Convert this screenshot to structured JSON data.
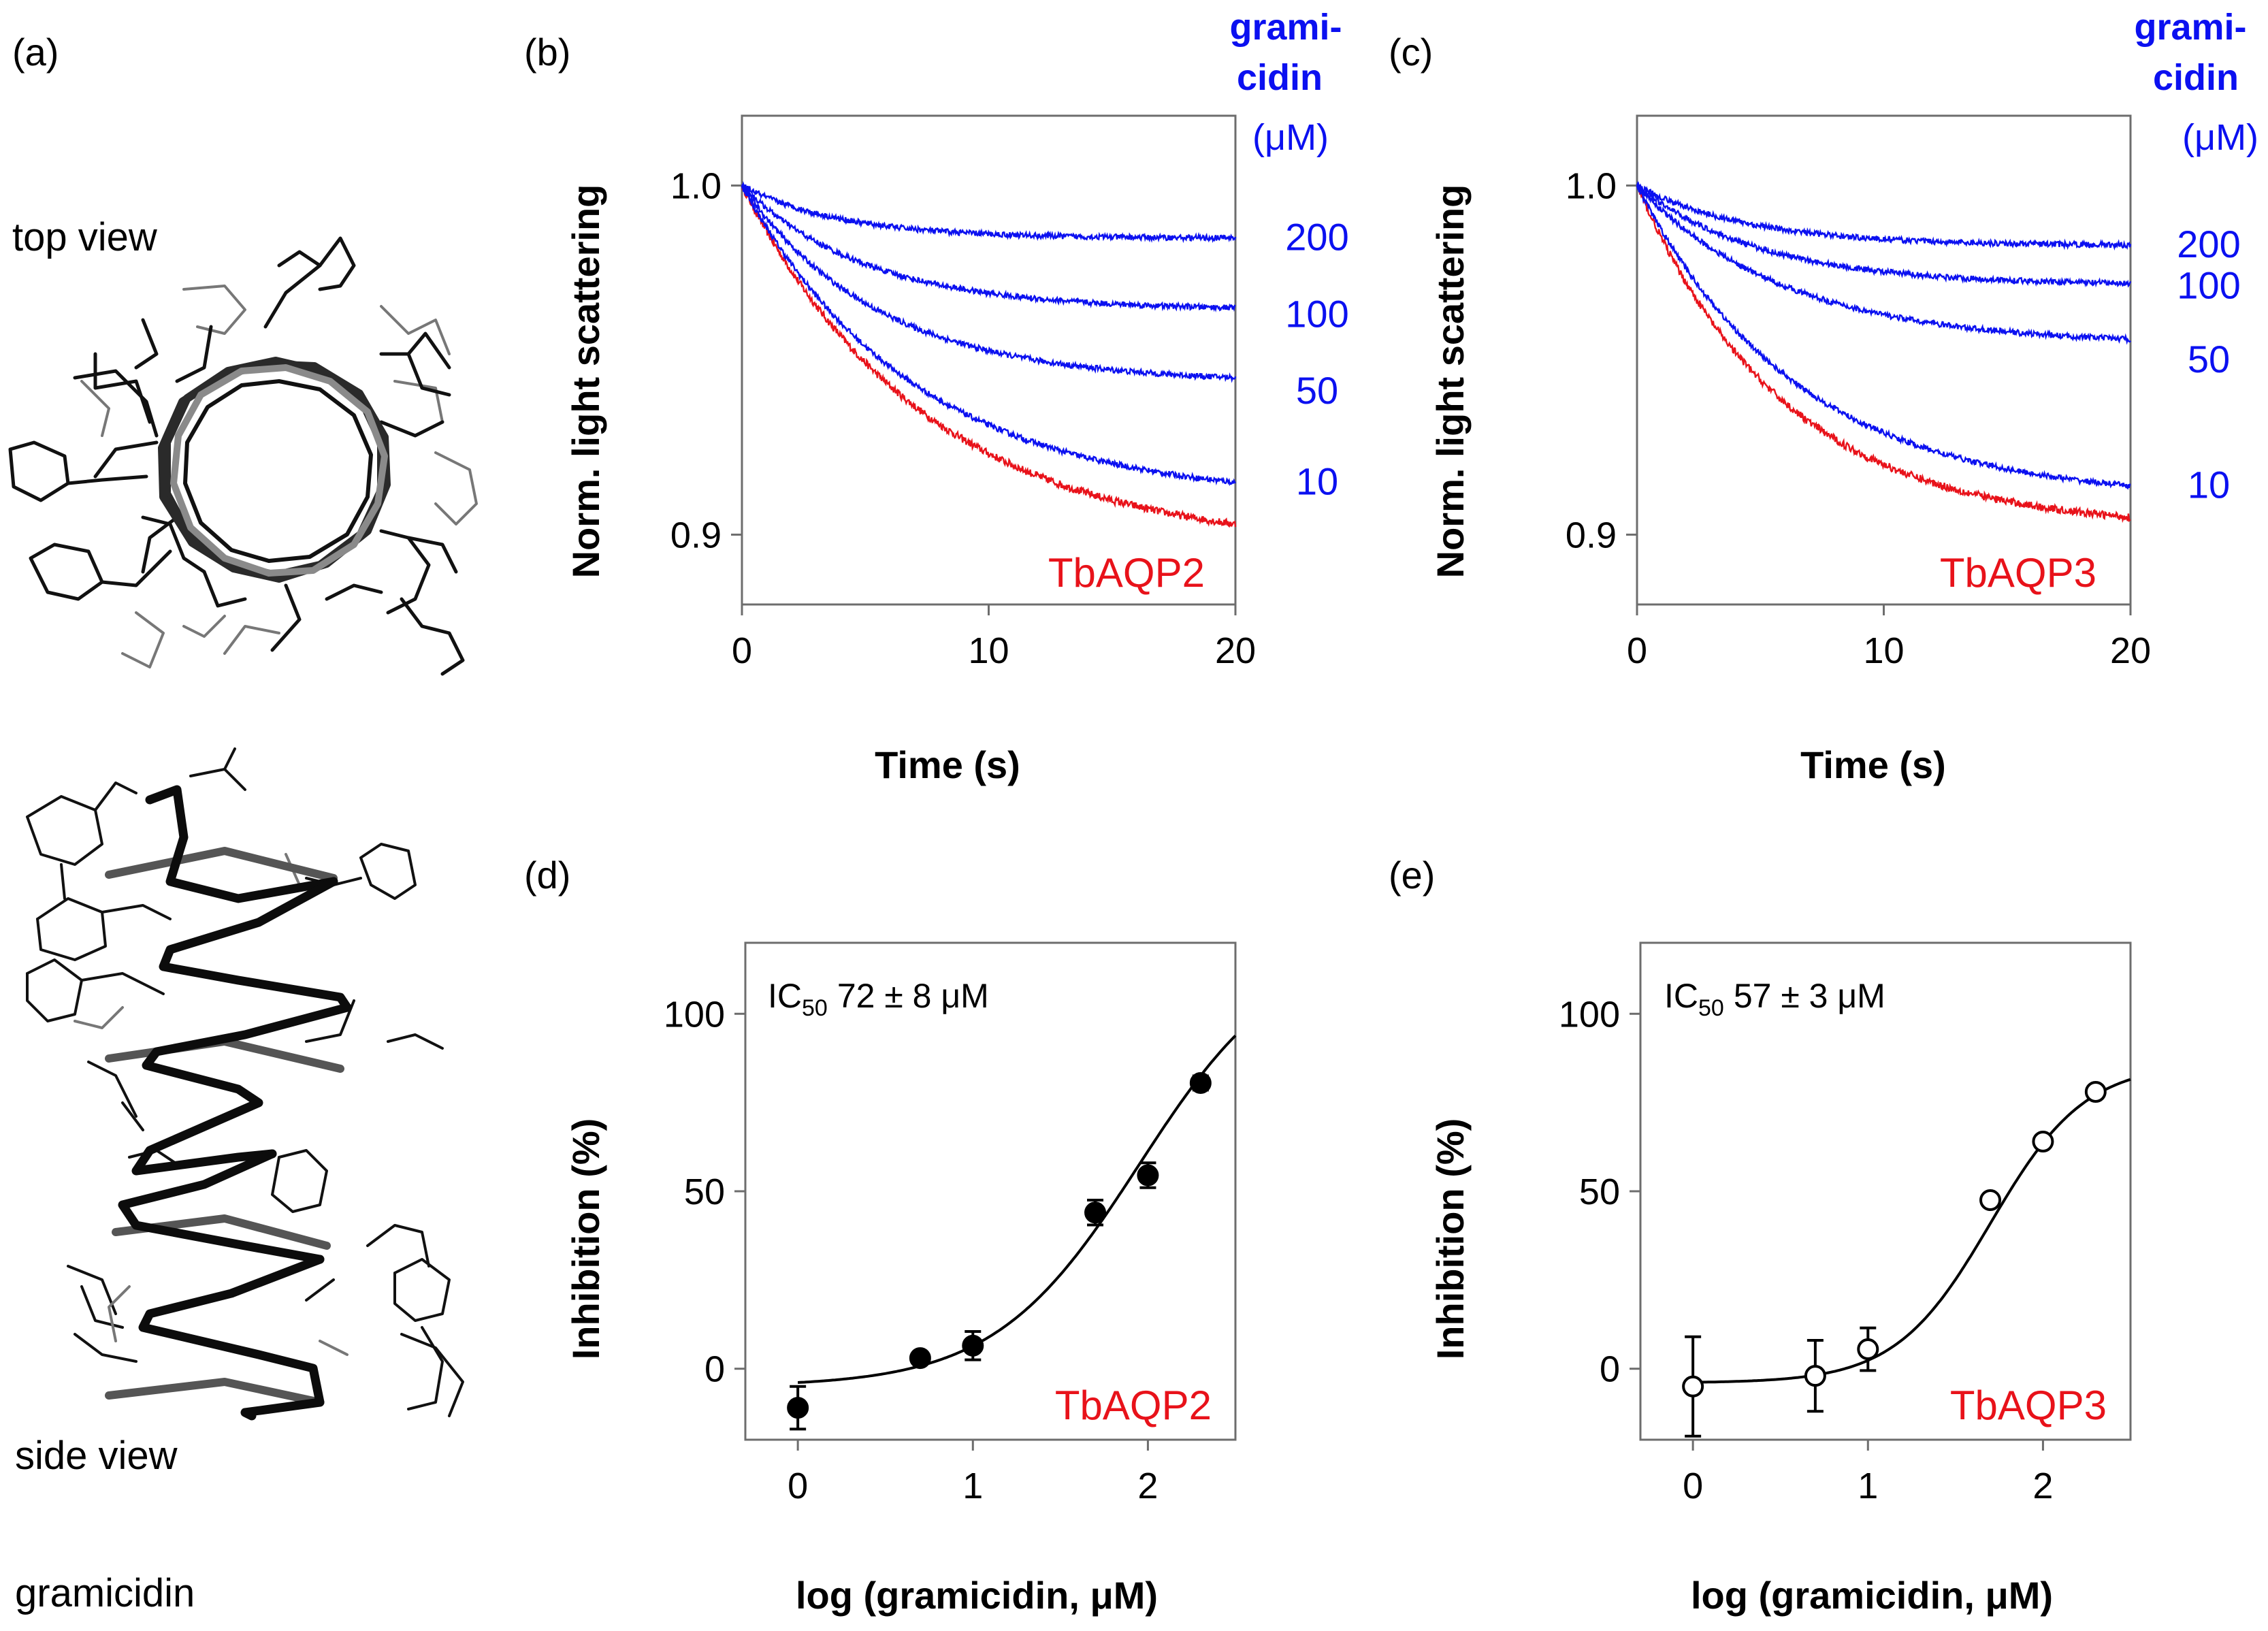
{
  "panels": {
    "a": {
      "label": "(a)",
      "top_view_label": "top view",
      "side_view_label": "side view",
      "molecule_label": "gramicidin",
      "image_description": "molecular models of the gramicidin helix"
    },
    "b": {
      "label": "(b)"
    },
    "c": {
      "label": "(c)"
    },
    "d": {
      "label": "(d)"
    },
    "e": {
      "label": "(e)"
    }
  },
  "colors": {
    "blue": "#0b10f0",
    "red": "#e8121a",
    "black": "#000000"
  },
  "chart_data": [
    {
      "id": "b",
      "type": "line",
      "xlabel": "Time (s)",
      "ylabel": "Norm. light scattering",
      "xlim": [
        0,
        20
      ],
      "ylim": [
        0.88,
        1.02
      ],
      "xticks": [
        0,
        10,
        20
      ],
      "yticks": [
        0.9,
        1.0
      ],
      "ytick_labels": [
        "0.9",
        "1.0"
      ],
      "legend_title": [
        "grami-",
        "cidin",
        "(μM)"
      ],
      "annotation": "TbAQP2",
      "series": [
        {
          "name": "TbAQP2 control",
          "label": "",
          "color": "#e8121a",
          "end": 0.903,
          "tau": 7.5
        },
        {
          "name": "10",
          "label": "10",
          "color": "#0b10f0",
          "end": 0.915,
          "tau": 7.0
        },
        {
          "name": "50",
          "label": "50",
          "color": "#0b10f0",
          "end": 0.945,
          "tau": 5.5
        },
        {
          "name": "100",
          "label": "100",
          "color": "#0b10f0",
          "end": 0.965,
          "tau": 5.0
        },
        {
          "name": "200",
          "label": "200",
          "color": "#0b10f0",
          "end": 0.985,
          "tau": 4.0
        }
      ]
    },
    {
      "id": "c",
      "type": "line",
      "xlabel": "Time (s)",
      "ylabel": "Norm. light scattering",
      "xlim": [
        0,
        20
      ],
      "ylim": [
        0.88,
        1.02
      ],
      "xticks": [
        0,
        10,
        20
      ],
      "yticks": [
        0.9,
        1.0
      ],
      "ytick_labels": [
        "0.9",
        "1.0"
      ],
      "legend_title": [
        "grami-",
        "cidin",
        "(μM)"
      ],
      "annotation": "TbAQP3",
      "series": [
        {
          "name": "TbAQP3 control",
          "label": "",
          "color": "#e8121a",
          "end": 0.905,
          "tau": 6.0
        },
        {
          "name": "10",
          "label": "10",
          "color": "#0b10f0",
          "end": 0.914,
          "tau": 6.5
        },
        {
          "name": "50",
          "label": "50",
          "color": "#0b10f0",
          "end": 0.956,
          "tau": 6.0
        },
        {
          "name": "100",
          "label": "100",
          "color": "#0b10f0",
          "end": 0.972,
          "tau": 5.0
        },
        {
          "name": "200",
          "label": "200",
          "color": "#0b10f0",
          "end": 0.983,
          "tau": 4.5
        }
      ]
    },
    {
      "id": "d",
      "type": "scatter",
      "xlabel": "log (gramicidin, μM)",
      "ylabel": "Inhibition (%)",
      "xlim": [
        -0.3,
        2.5
      ],
      "ylim": [
        -20,
        120
      ],
      "xticks": [
        0,
        1,
        2
      ],
      "yticks": [
        0,
        50,
        100
      ],
      "annotation": "TbAQP2",
      "ic50_prefix": "IC",
      "ic50_subscript": "50",
      "ic50_value": "72 ± 8 μM",
      "marker": "filled",
      "points": [
        {
          "x": 0,
          "y": -11,
          "err": 6
        },
        {
          "x": 0.699,
          "y": 3,
          "err": 1.5
        },
        {
          "x": 1,
          "y": 6.5,
          "err": 4
        },
        {
          "x": 1.699,
          "y": 44,
          "err": 3.5
        },
        {
          "x": 2,
          "y": 54.5,
          "err": 3.5
        },
        {
          "x": 2.301,
          "y": 80.5,
          "err": 2
        }
      ],
      "fit": {
        "type": "sigmoid",
        "bottom": -5,
        "top": 120,
        "log_ic50": 1.95,
        "hill": 1.05,
        "x_range": [
          0,
          2.5
        ]
      }
    },
    {
      "id": "e",
      "type": "scatter",
      "xlabel": "log (gramicidin, μM)",
      "ylabel": "Inhibition (%)",
      "xlim": [
        -0.3,
        2.5
      ],
      "ylim": [
        -20,
        120
      ],
      "xticks": [
        0,
        1,
        2
      ],
      "yticks": [
        0,
        50,
        100
      ],
      "annotation": "TbAQP3",
      "ic50_prefix": "IC",
      "ic50_subscript": "50",
      "ic50_value": "57 ± 3 μM",
      "marker": "open",
      "points": [
        {
          "x": 0,
          "y": -5,
          "err": 14
        },
        {
          "x": 0.699,
          "y": -2,
          "err": 10
        },
        {
          "x": 1,
          "y": 5.5,
          "err": 6
        },
        {
          "x": 1.699,
          "y": 47.5,
          "err": 1.5
        },
        {
          "x": 2,
          "y": 64,
          "err": 1.5
        },
        {
          "x": 2.301,
          "y": 78,
          "err": 1.5
        }
      ],
      "fit": {
        "type": "sigmoid",
        "bottom": -4,
        "top": 86,
        "log_ic50": 1.7,
        "hill": 1.6,
        "x_range": [
          0,
          2.5
        ]
      }
    }
  ]
}
